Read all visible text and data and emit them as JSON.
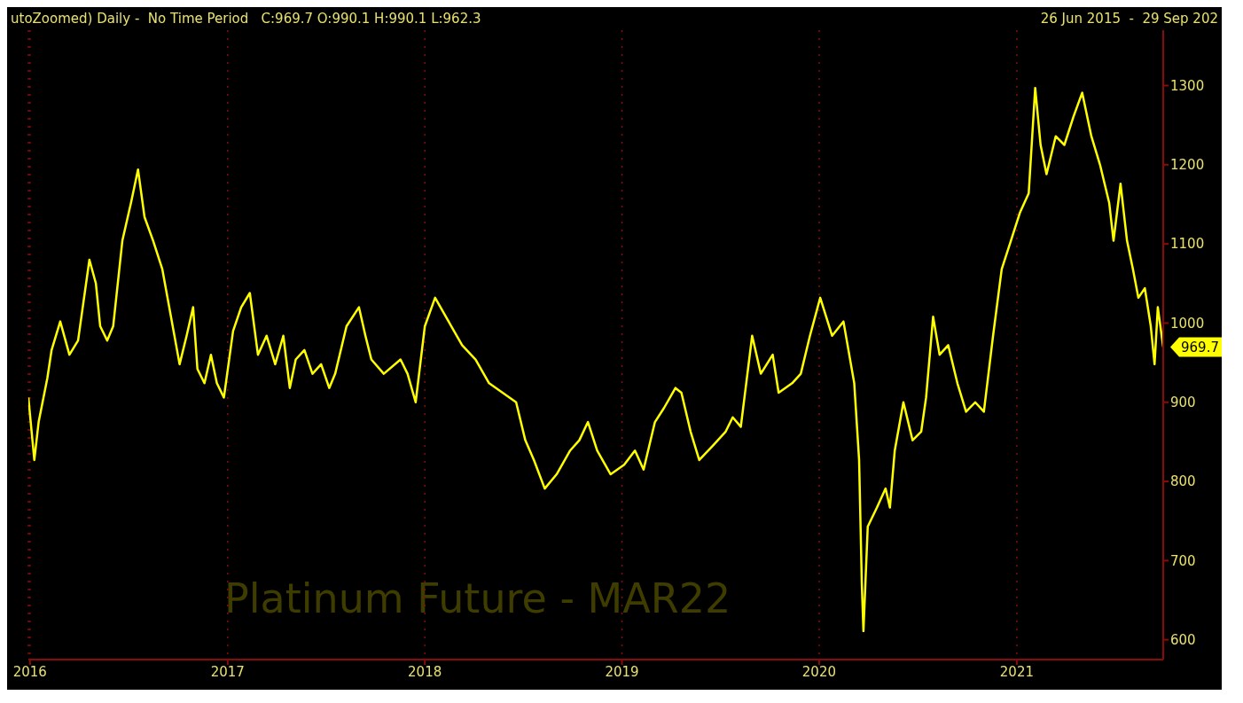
{
  "chart_data": {
    "type": "line",
    "title": "Platinum Future - MAR22",
    "annotations": [
      "utoZoomed) Daily -  No Time Period   C:969.7 O:990.1 H:990.1 L:962.3",
      "26 Jun 2015  -  29 Sep 202",
      {
        "text": "969.7",
        "x": "2021-09-29",
        "y": 969.7
      }
    ],
    "x": [
      "2015-12-29",
      "2016-01-09",
      "2016-01-17",
      "2016-02-02",
      "2016-02-10",
      "2016-02-26",
      "2016-03-14",
      "2016-03-30",
      "2016-04-20",
      "2016-05-02",
      "2016-05-10",
      "2016-05-23",
      "2016-06-03",
      "2016-06-20",
      "2016-07-06",
      "2016-07-19",
      "2016-07-31",
      "2016-08-16",
      "2016-09-02",
      "2016-09-18",
      "2016-10-04",
      "2016-10-17",
      "2016-10-29",
      "2016-11-06",
      "2016-11-19",
      "2016-12-01",
      "2016-12-12",
      "2016-12-25",
      "2017-01-11",
      "2017-01-26",
      "2017-02-11",
      "2017-02-26",
      "2017-03-14",
      "2017-03-30",
      "2017-04-14",
      "2017-04-26",
      "2017-05-07",
      "2017-05-23",
      "2017-06-07",
      "2017-06-23",
      "2017-07-08",
      "2017-07-19",
      "2017-08-09",
      "2017-09-01",
      "2017-09-13",
      "2017-09-24",
      "2017-10-17",
      "2017-11-17",
      "2017-11-30",
      "2017-12-15",
      "2018-01-01",
      "2018-01-20",
      "2018-02-14",
      "2018-03-11",
      "2018-04-05",
      "2018-04-30",
      "2018-05-25",
      "2018-06-19",
      "2018-07-06",
      "2018-07-22",
      "2018-08-11",
      "2018-09-02",
      "2018-09-27",
      "2018-10-14",
      "2018-10-30",
      "2018-11-16",
      "2018-12-11",
      "2019-01-05",
      "2019-01-25",
      "2019-02-10",
      "2019-03-03",
      "2019-03-20",
      "2019-04-10",
      "2019-04-21",
      "2019-05-08",
      "2019-05-24",
      "2019-06-18",
      "2019-07-12",
      "2019-07-25",
      "2019-08-09",
      "2019-08-30",
      "2019-09-15",
      "2019-10-07",
      "2019-10-18",
      "2019-11-12",
      "2019-11-28",
      "2019-12-15",
      "2020-01-03",
      "2020-01-25",
      "2020-02-15",
      "2020-03-06",
      "2020-03-15",
      "2020-03-20",
      "2020-03-23",
      "2020-03-31",
      "2020-04-17",
      "2020-05-03",
      "2020-05-11",
      "2020-05-20",
      "2020-06-05",
      "2020-06-22",
      "2020-07-08",
      "2020-07-17",
      "2020-07-30",
      "2020-08-11",
      "2020-08-27",
      "2020-09-13",
      "2020-09-29",
      "2020-10-16",
      "2020-11-01",
      "2020-11-18",
      "2020-12-04",
      "2020-12-21",
      "2021-01-07",
      "2021-01-23",
      "2021-02-04",
      "2021-02-14",
      "2021-02-25",
      "2021-03-14",
      "2021-03-30",
      "2021-04-16",
      "2021-05-02",
      "2021-05-19",
      "2021-06-04",
      "2021-06-21",
      "2021-06-29",
      "2021-07-12",
      "2021-07-24",
      "2021-08-04",
      "2021-08-14",
      "2021-08-26",
      "2021-09-06",
      "2021-09-13",
      "2021-09-19",
      "2021-09-29"
    ],
    "series": [
      {
        "color": "#ffff00",
        "values": [
          906,
          827,
          875,
          930,
          966,
          1002,
          960,
          978,
          1080,
          1050,
          996,
          978,
          996,
          1104,
          1152,
          1194,
          1134,
          1104,
          1068,
          1008,
          948,
          984,
          1020,
          942,
          924,
          960,
          924,
          906,
          990,
          1020,
          1038,
          960,
          984,
          948,
          984,
          918,
          954,
          966,
          936,
          948,
          918,
          936,
          996,
          1020,
          984,
          954,
          936,
          954,
          936,
          900,
          996,
          1032,
          1002,
          972,
          954,
          924,
          912,
          900,
          852,
          827,
          791,
          809,
          839,
          852,
          875,
          839,
          809,
          821,
          839,
          815,
          875,
          893,
          918,
          912,
          863,
          827,
          845,
          863,
          881,
          869,
          984,
          936,
          960,
          912,
          924,
          936,
          984,
          1032,
          984,
          1002,
          924,
          827,
          671,
          611,
          743,
          767,
          791,
          767,
          839,
          900,
          852,
          863,
          906,
          1008,
          960,
          972,
          924,
          888,
          900,
          888,
          984,
          1068,
          1104,
          1140,
          1164,
          1297,
          1225,
          1188,
          1236,
          1225,
          1261,
          1291,
          1236,
          1200,
          1152,
          1104,
          1176,
          1104,
          1068,
          1032,
          1044,
          996,
          948,
          1020,
          969.7
        ]
      }
    ],
    "xlim": [
      "2015-12-29",
      "2021-09-29"
    ],
    "xticks": [
      "2016",
      "2017",
      "2018",
      "2019",
      "2020",
      "2021"
    ],
    "ylim": [
      575,
      1370
    ],
    "yticks": [
      600,
      700,
      800,
      900,
      1000,
      1100,
      1200,
      1300
    ],
    "grid": "x",
    "legend": false,
    "marker": "none",
    "line_style": "solid"
  }
}
